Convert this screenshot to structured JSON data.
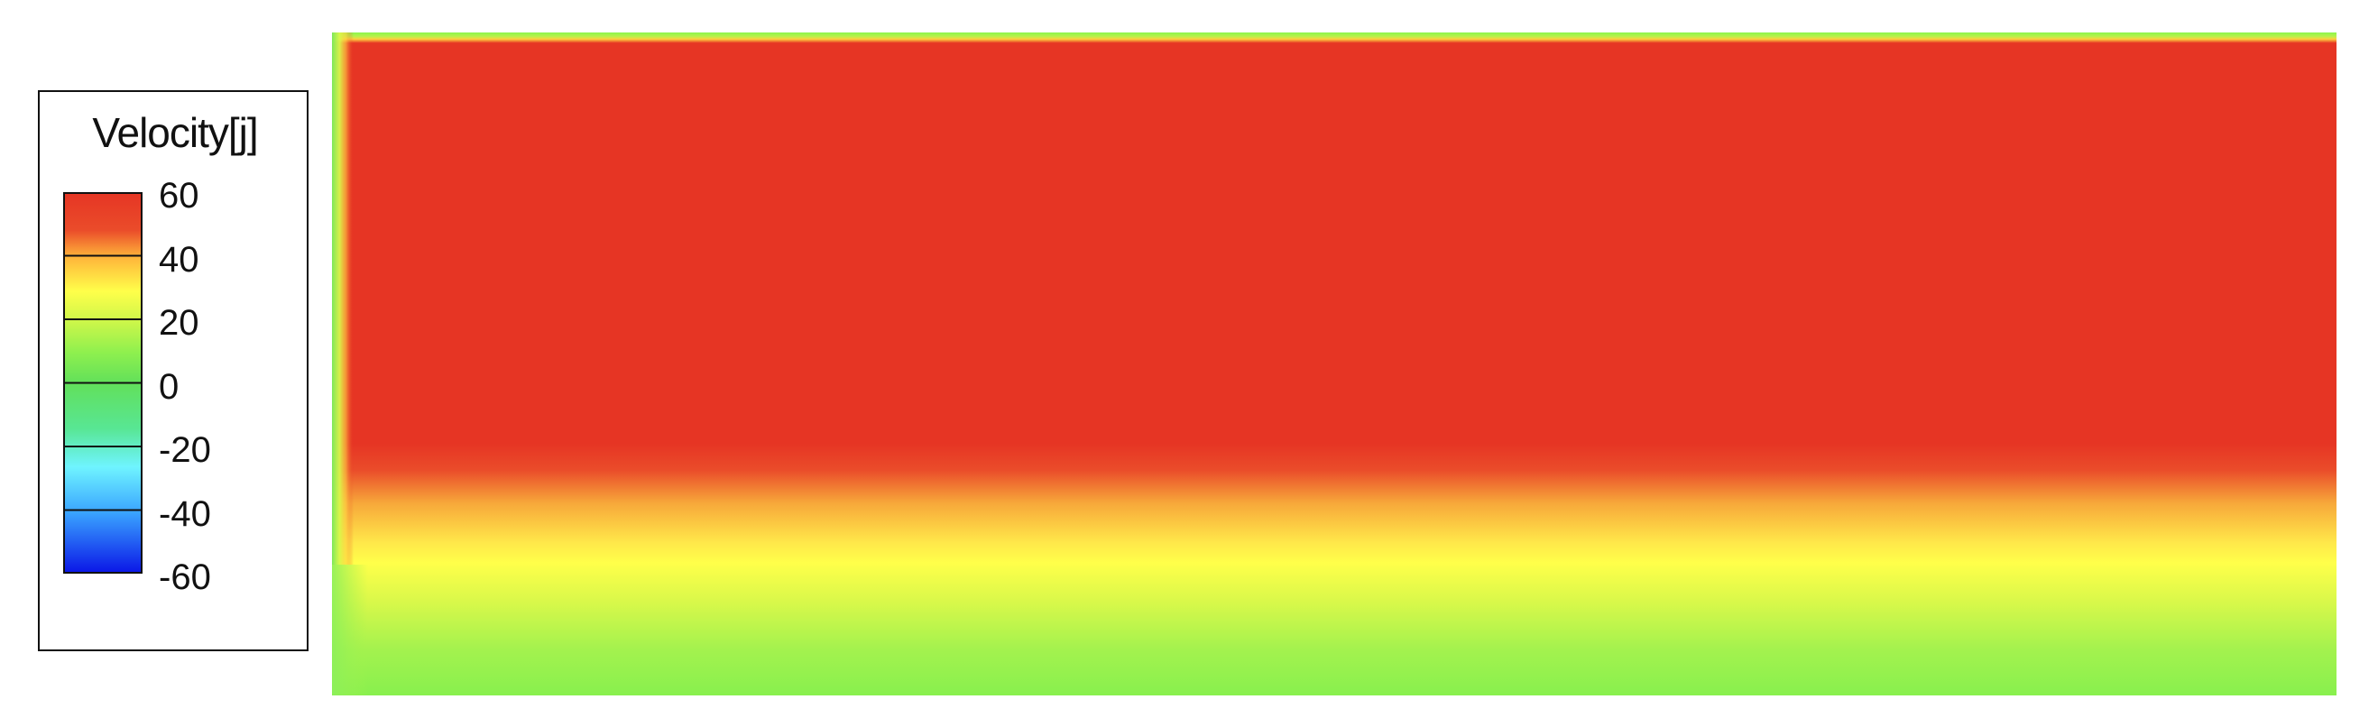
{
  "chart_data": {
    "type": "heatmap",
    "variable": "Velocity[j]",
    "colorbar": {
      "min": -60,
      "max": 60,
      "ticks": [
        "60",
        "40",
        "20",
        "0",
        "-20",
        "-40",
        "-60"
      ],
      "stops": [
        {
          "value": -60,
          "color": "#0a14e6"
        },
        {
          "value": -40,
          "color": "#3aa4ff"
        },
        {
          "value": -20,
          "color": "#6ff4ff"
        },
        {
          "value": 0,
          "color": "#62e05a"
        },
        {
          "value": 20,
          "color": "#a5f24a"
        },
        {
          "value": 30,
          "color": "#ffff4a"
        },
        {
          "value": 40,
          "color": "#ffb43a"
        },
        {
          "value": 60,
          "color": "#e63524"
        }
      ]
    },
    "field": {
      "description_values": {
        "core_region": 60,
        "top_wall_layer": 20,
        "left_wall_layer": 10,
        "lower_transition": 35,
        "bottom_region": 15
      }
    },
    "legend_placement": "left"
  }
}
